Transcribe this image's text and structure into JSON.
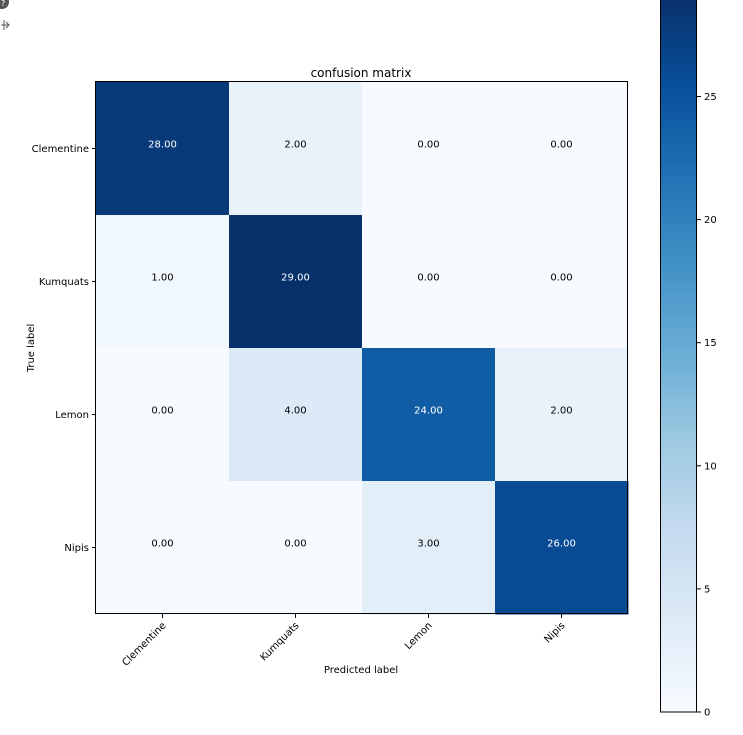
{
  "chart_data": {
    "type": "heatmap",
    "title": "confusion matrix",
    "xlabel": "Predicted label",
    "ylabel": "True label",
    "x_categories": [
      "Clementine",
      "Kumquats",
      "Lemon",
      "Nipis"
    ],
    "y_categories": [
      "Clementine",
      "Kumquats",
      "Lemon",
      "Nipis"
    ],
    "values": [
      [
        28,
        2,
        0,
        0
      ],
      [
        1,
        29,
        0,
        0
      ],
      [
        0,
        4,
        24,
        2
      ],
      [
        0,
        0,
        3,
        26
      ]
    ],
    "cell_labels": [
      [
        "28.00",
        "2.00",
        "0.00",
        "0.00"
      ],
      [
        "1.00",
        "29.00",
        "0.00",
        "0.00"
      ],
      [
        "0.00",
        "4.00",
        "24.00",
        "2.00"
      ],
      [
        "0.00",
        "0.00",
        "3.00",
        "26.00"
      ]
    ],
    "colormap": "Blues",
    "colorbar": {
      "range": [
        0,
        29
      ],
      "ticks": [
        0,
        5,
        10,
        15,
        20,
        25
      ],
      "tick_labels": [
        "0",
        "5",
        "10",
        "15",
        "20",
        "25"
      ]
    },
    "grid": false
  },
  "toolbar": {
    "icons": [
      "pan-icon",
      "move-icon"
    ]
  }
}
